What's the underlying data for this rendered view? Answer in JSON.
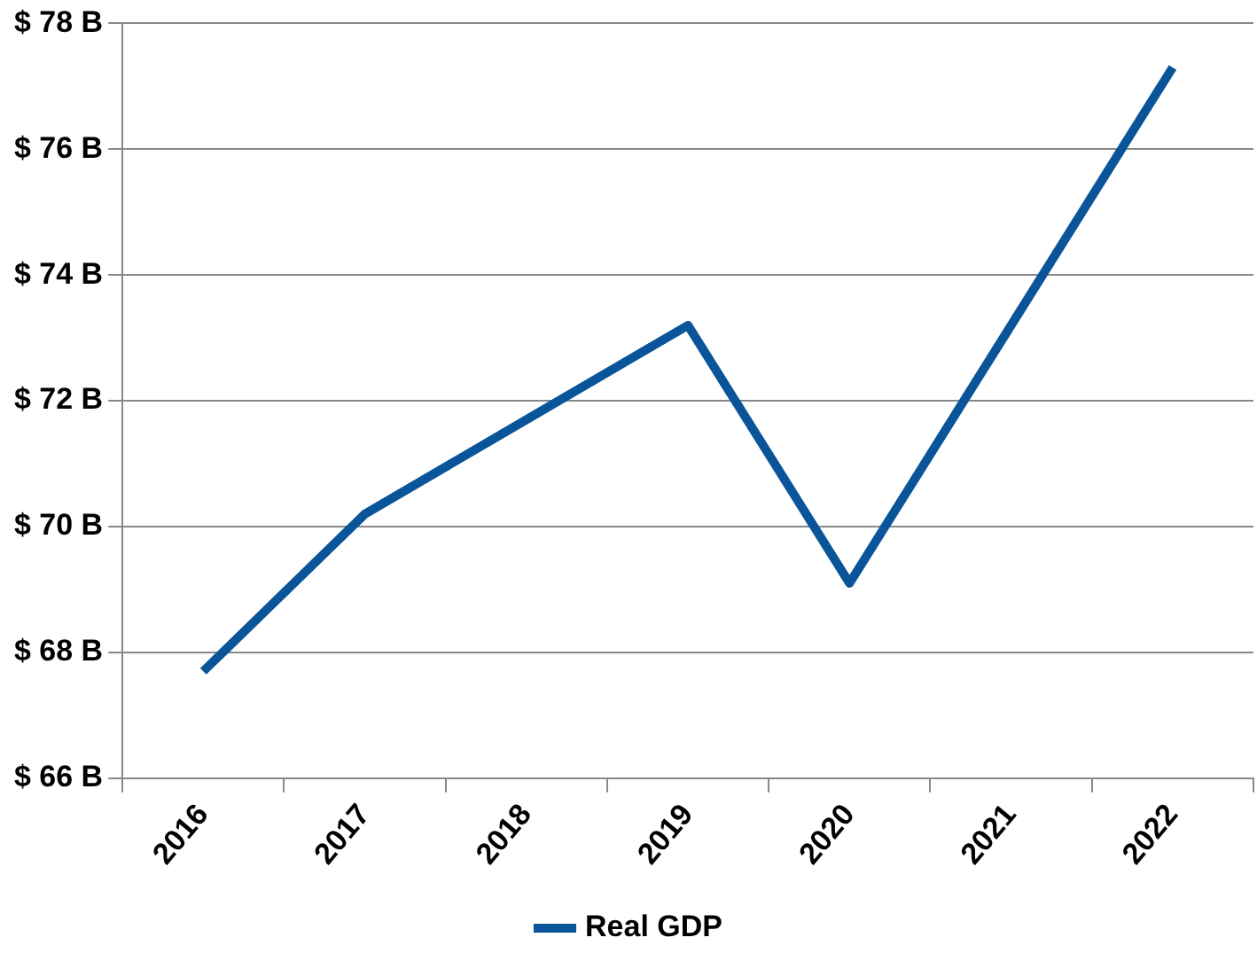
{
  "chart_data": {
    "type": "line",
    "categories": [
      "2016",
      "2017",
      "2018",
      "2019",
      "2020",
      "2021",
      "2022"
    ],
    "series": [
      {
        "name": "Real GDP",
        "color": "#0a5599",
        "values": [
          67.7,
          70.2,
          71.7,
          73.2,
          69.1,
          73.2,
          77.3
        ]
      }
    ],
    "ylim": [
      66,
      78
    ],
    "yticks": [
      {
        "value": 66,
        "label": "$ 66 B"
      },
      {
        "value": 68,
        "label": "$ 68 B"
      },
      {
        "value": 70,
        "label": "$ 70 B"
      },
      {
        "value": 72,
        "label": "$ 72 B"
      },
      {
        "value": 74,
        "label": "$ 74 B"
      },
      {
        "value": 76,
        "label": "$ 76 B"
      },
      {
        "value": 78,
        "label": "$ 78 B"
      }
    ],
    "grid": "y",
    "legend": "bottom",
    "marker": "none",
    "line_style": "solid"
  }
}
